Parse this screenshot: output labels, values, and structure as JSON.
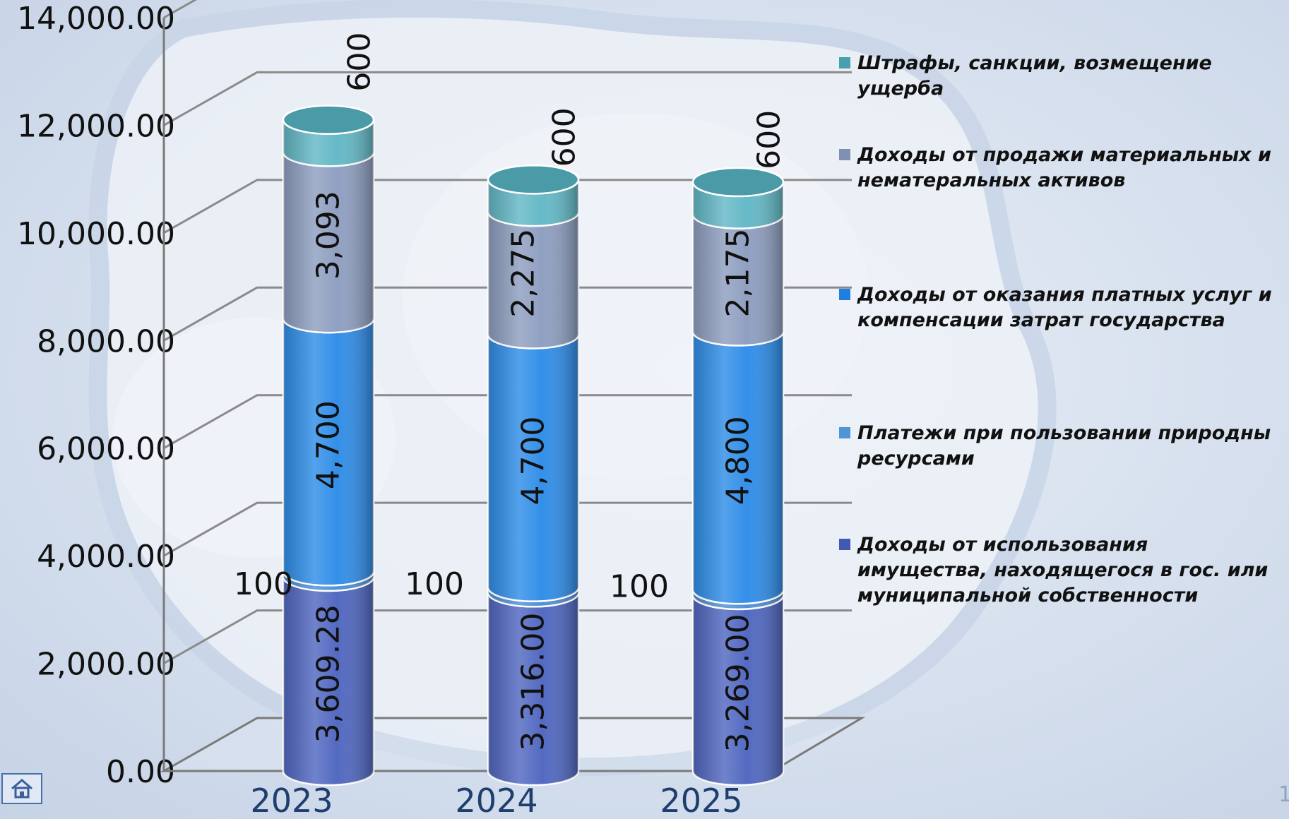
{
  "chart_data": {
    "type": "bar",
    "subtype": "stacked-3d-cylinder",
    "categories": [
      "2023",
      "2024",
      "2025"
    ],
    "ylim": [
      0,
      14000
    ],
    "yticks": [
      "0.00",
      "2,000.00",
      "4,000.00",
      "6,000.00",
      "8,000.00",
      "10,000.00",
      "12,000.00",
      "14,000.00"
    ],
    "grid": true,
    "legend_position": "right",
    "series": [
      {
        "name": "Доходы от использования имущества, находящегося в гос. или муниципальной собственности",
        "color": "#5067c0",
        "values": [
          3609.28,
          3316.0,
          3269.0
        ],
        "labels": [
          "3,609.28",
          "3,316.00",
          "3,269.00"
        ]
      },
      {
        "name": "Платежи при пользовании природны ресурсами",
        "color": "#4f8fd6",
        "values": [
          100,
          100,
          100
        ],
        "labels": [
          "100",
          "100",
          "100"
        ]
      },
      {
        "name": "Доходы от оказания платных услуг и компенсации затрат государства",
        "color": "#2f8de8",
        "values": [
          4700,
          4700,
          4800
        ],
        "labels": [
          "4,700",
          "4,700",
          "4,800"
        ]
      },
      {
        "name": "Доходы от продажи материальных и нематеральных активов",
        "color": "#8e9ec0",
        "values": [
          3093,
          2275,
          2175
        ],
        "labels": [
          "3,093",
          "2,275",
          "2,175"
        ]
      },
      {
        "name": "Штрафы, санкции, возмещение ущерба",
        "color": "#63b8c6",
        "values": [
          600,
          600,
          600
        ],
        "labels": [
          "600",
          "600",
          "600"
        ]
      }
    ]
  },
  "legend": {
    "items": [
      {
        "label": "Штрафы, санкции, возмещение ущерба",
        "color": "#47a0ad"
      },
      {
        "label": "Доходы от продажи материальных и нематеральных активов",
        "color": "#8090b0"
      },
      {
        "label": "Доходы от оказания платных услуг и компенсации затрат государства",
        "color": "#1f7fe0"
      },
      {
        "label": "Платежи при пользовании природны ресурсами",
        "color": "#4f95d6"
      },
      {
        "label": "Доходы от использования имущества, находящегося в гос. или муниципальной собственности",
        "color": "#4358b0"
      }
    ]
  },
  "footer": {
    "home_icon": "home-icon",
    "page_number": "1"
  }
}
